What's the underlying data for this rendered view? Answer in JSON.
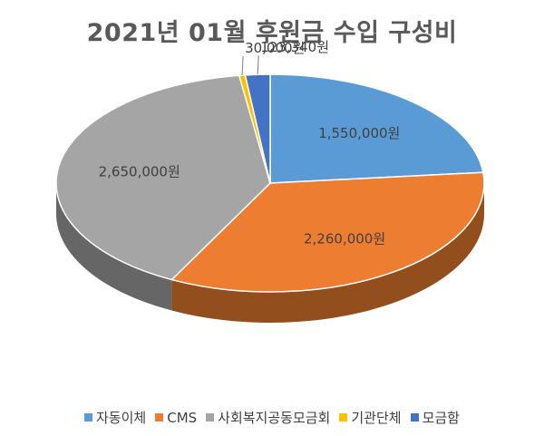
{
  "chart_data": {
    "type": "pie",
    "title": "2021년 01월 후원금 수입 구성비",
    "legend_position": "bottom",
    "series": [
      {
        "name": "자동이체",
        "value": 1550000,
        "label": "1,550,000원",
        "color": "#5B9BD5"
      },
      {
        "name": "CMS",
        "value": 2260000,
        "label": "2,260,000원",
        "color": "#ED7D31"
      },
      {
        "name": "사회복지공동모금회",
        "value": 2650000,
        "label": "2,650,000원",
        "color": "#A5A5A5"
      },
      {
        "name": "기관단체",
        "value": 30000,
        "label": "30,000원",
        "color": "#FFC000"
      },
      {
        "name": "모금함",
        "value": 123340,
        "label": "123,340원",
        "color": "#4472C4"
      }
    ]
  }
}
